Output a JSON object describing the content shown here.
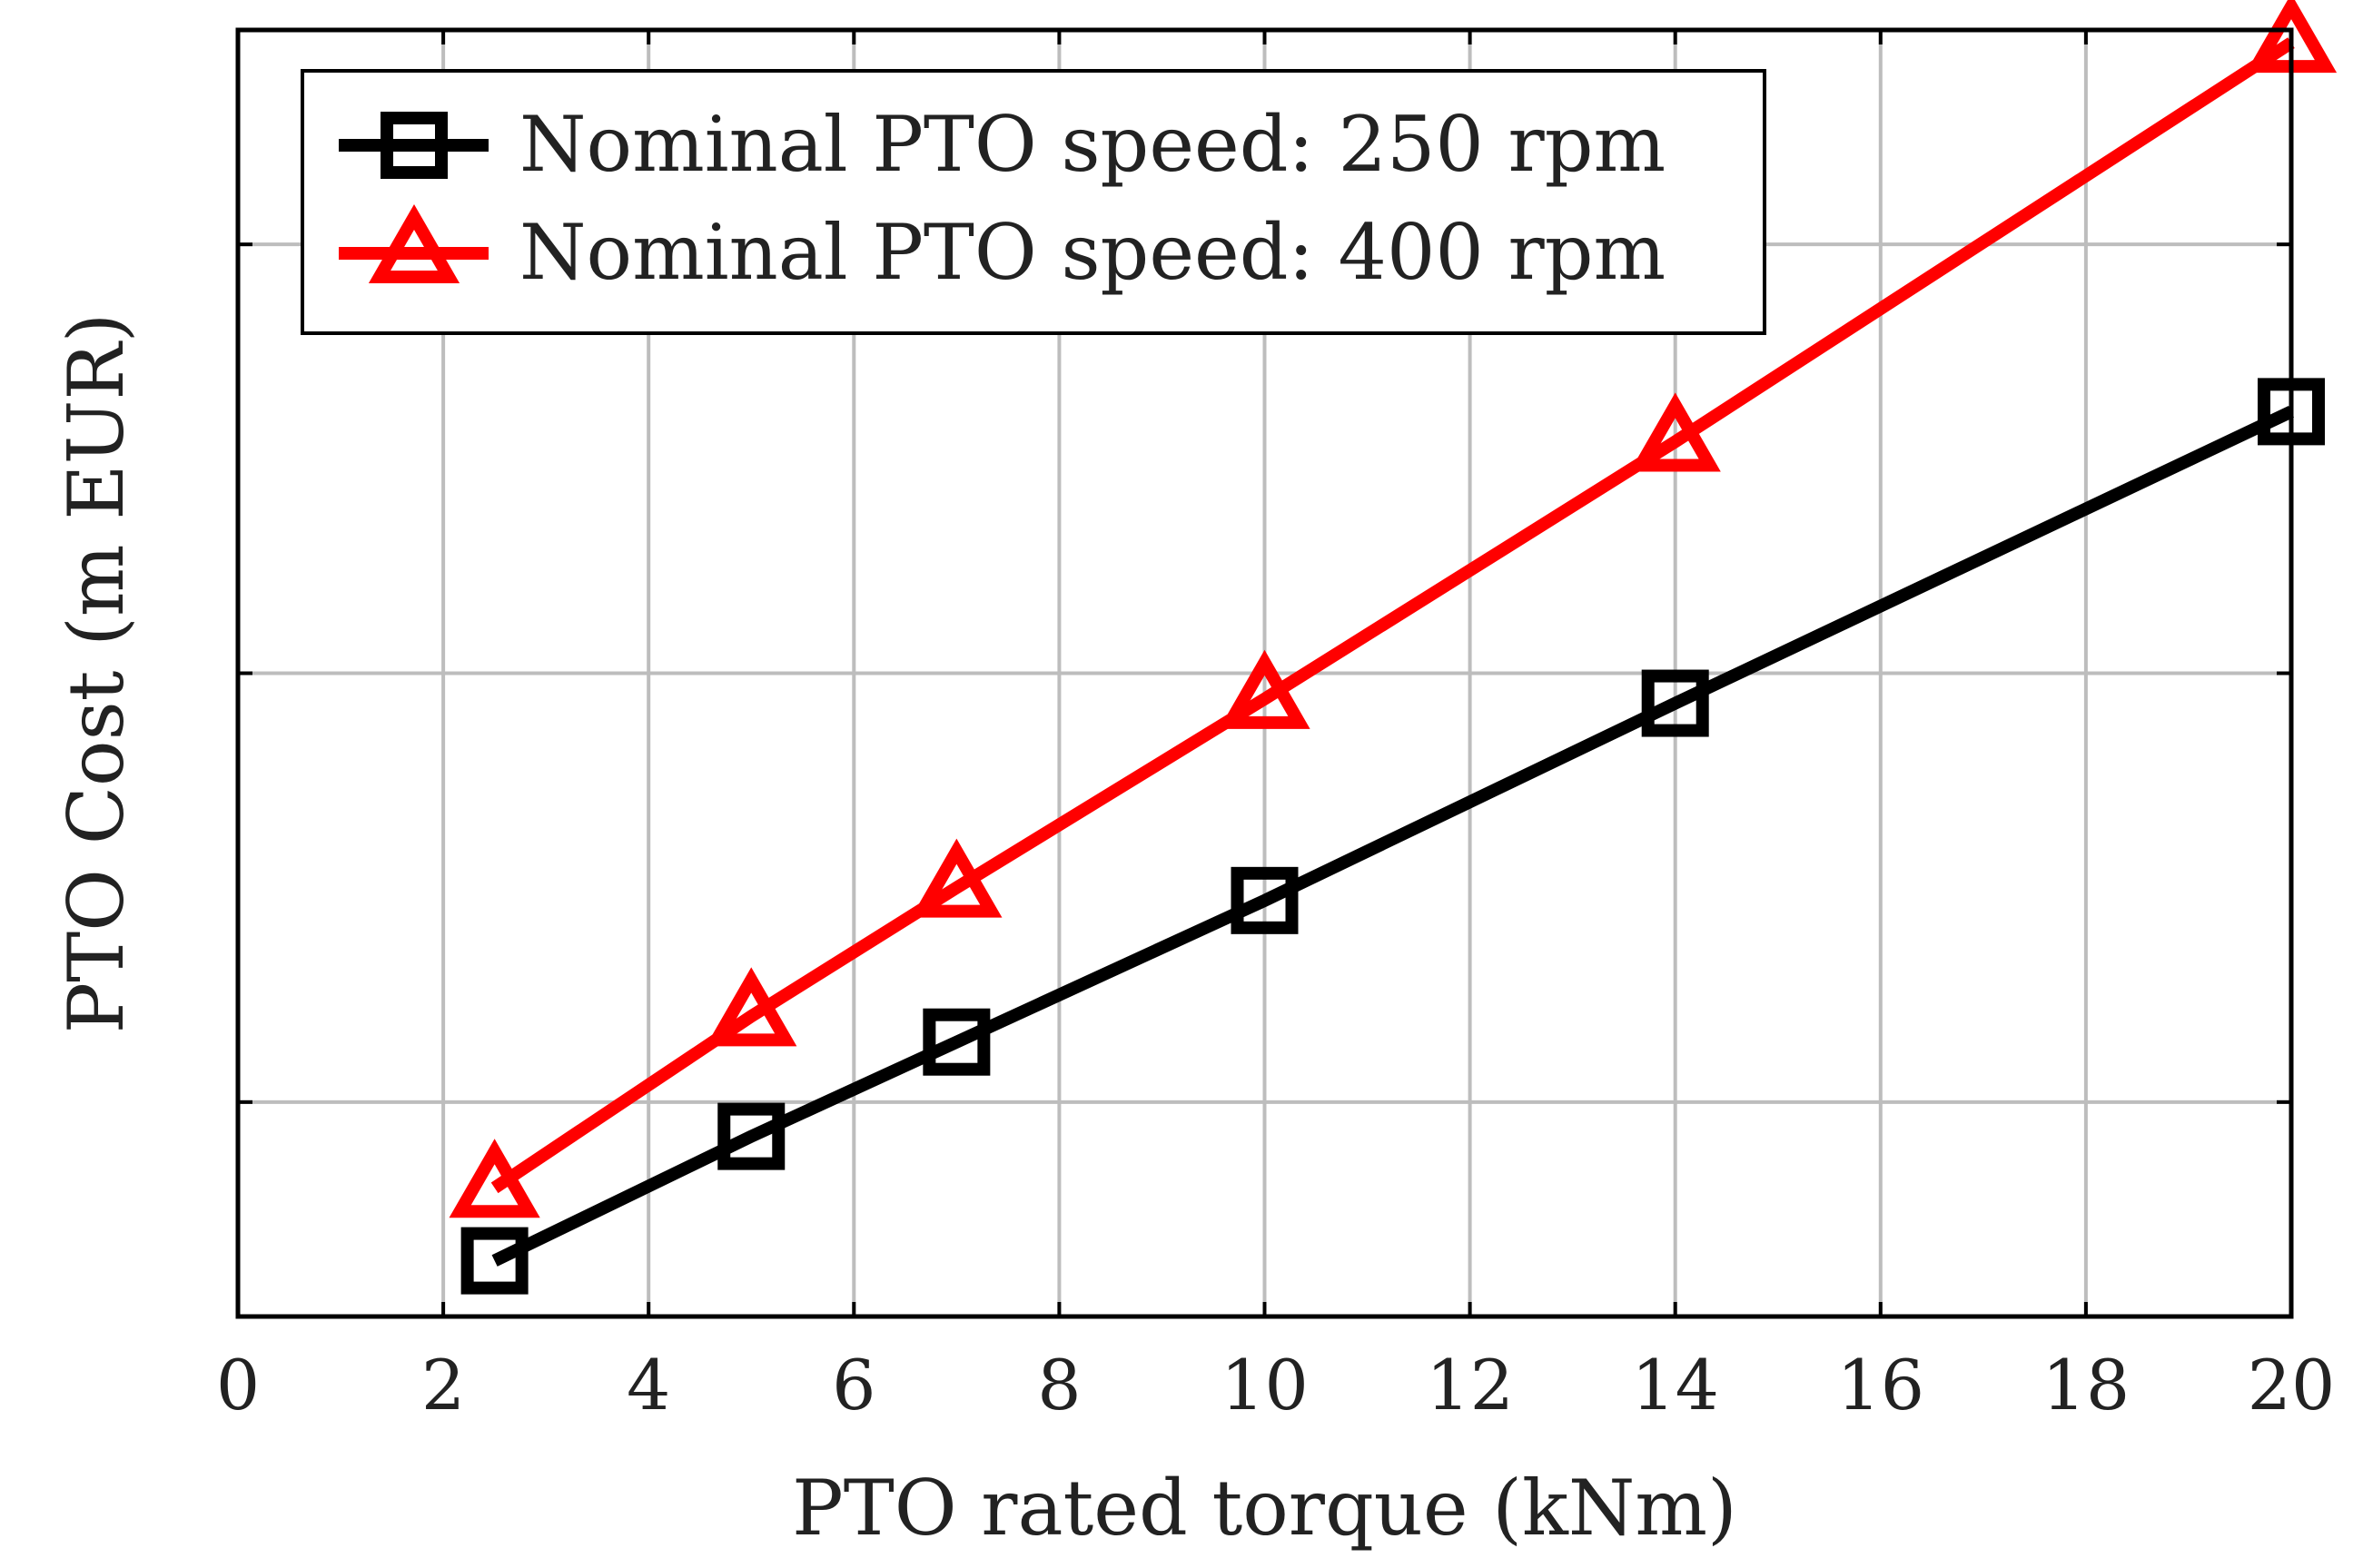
{
  "chart_data": {
    "type": "line",
    "title": "",
    "xlabel": "PTO rated torque (kNm)",
    "ylabel": "PTO Cost (m EUR)",
    "xlim": [
      0,
      20
    ],
    "ylim": [
      0,
      3
    ],
    "xticks": [
      "0",
      "2",
      "4",
      "6",
      "8",
      "10",
      "12",
      "14",
      "16",
      "18",
      "20"
    ],
    "yticks_labeled": false,
    "grid": true,
    "legend_position": "top-left",
    "series": [
      {
        "name": "Nominal PTO speed: 250 rpm",
        "color": "#000000",
        "marker": "square",
        "x": [
          2.5,
          5,
          7,
          10,
          14,
          20
        ],
        "y": [
          0.13,
          0.42,
          0.64,
          0.97,
          1.43,
          2.11
        ]
      },
      {
        "name": "Nominal PTO speed: 400 rpm",
        "color": "#ff0000",
        "marker": "triangle",
        "x": [
          2.5,
          5,
          7,
          10,
          14,
          20
        ],
        "y": [
          0.3,
          0.7,
          1.0,
          1.44,
          2.04,
          2.97
        ]
      }
    ]
  }
}
